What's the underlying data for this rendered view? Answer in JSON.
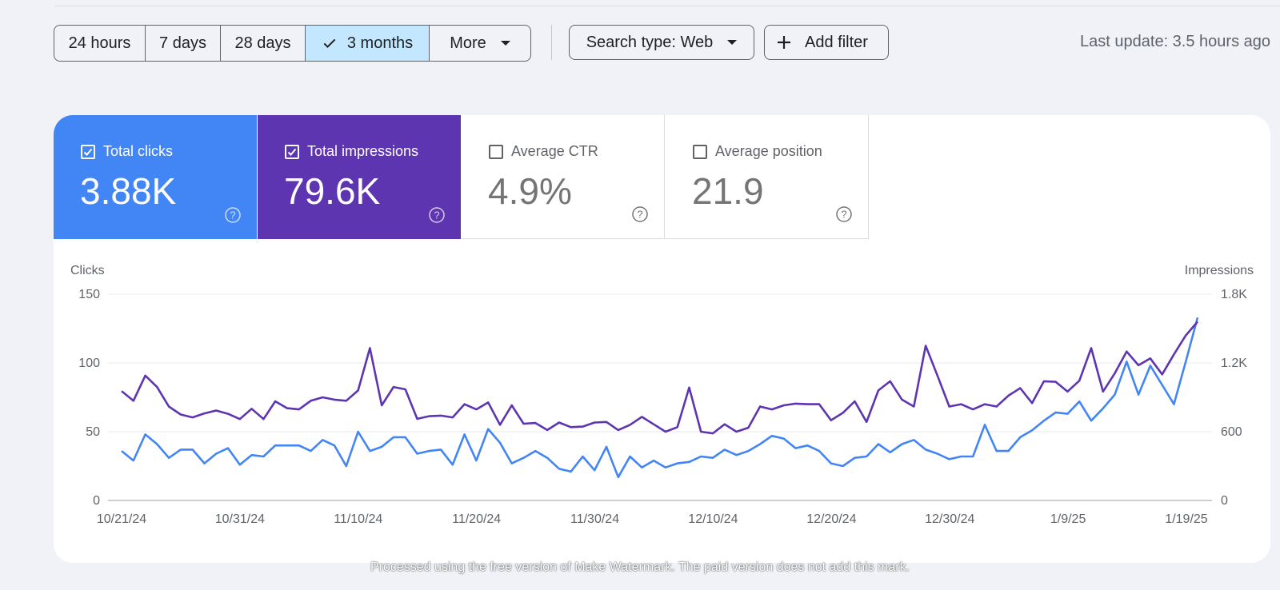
{
  "toolbar": {
    "ranges": [
      {
        "label": "24 hours",
        "selected": false
      },
      {
        "label": "7 days",
        "selected": false
      },
      {
        "label": "28 days",
        "selected": false
      },
      {
        "label": "3 months",
        "selected": true
      },
      {
        "label": "More",
        "selected": false
      }
    ],
    "search_type": "Search type: Web",
    "add_filter": "Add filter",
    "last_update": "Last update: 3.5 hours ago"
  },
  "metrics": [
    {
      "label": "Total clicks",
      "value": "3.88K",
      "checked": true,
      "color": "#4285f4"
    },
    {
      "label": "Total impressions",
      "value": "79.6K",
      "checked": true,
      "color": "#5e35b1"
    },
    {
      "label": "Average CTR",
      "value": "4.9%",
      "checked": false,
      "color": "#ffffff"
    },
    {
      "label": "Average position",
      "value": "21.9",
      "checked": false,
      "color": "#ffffff"
    }
  ],
  "chart_data": {
    "type": "line",
    "x_ticks": [
      "10/21/24",
      "10/31/24",
      "11/10/24",
      "11/20/24",
      "11/30/24",
      "12/10/24",
      "12/20/24",
      "12/30/24",
      "1/9/25",
      "1/19/25"
    ],
    "y_left": {
      "label": "Clicks",
      "ticks": [
        "0",
        "50",
        "100",
        "150"
      ],
      "range": [
        0,
        150
      ]
    },
    "y_right": {
      "label": "Impressions",
      "ticks": [
        "0",
        "600",
        "1.2K",
        "1.8K"
      ],
      "range": [
        0,
        1800
      ]
    },
    "series": [
      {
        "name": "Clicks",
        "axis": "left",
        "color": "#4285f4",
        "values": [
          36,
          29,
          48,
          41,
          31,
          37,
          37,
          27,
          34,
          38,
          26,
          33,
          32,
          40,
          40,
          40,
          36,
          44,
          40,
          25,
          50,
          36,
          39,
          46,
          46,
          34,
          36,
          37,
          26,
          48,
          29,
          52,
          42,
          27,
          31,
          36,
          31,
          23,
          21,
          32,
          22,
          39,
          17,
          32,
          24,
          29,
          24,
          27,
          28,
          32,
          31,
          37,
          33,
          36,
          41,
          47,
          45,
          38,
          40,
          36,
          27,
          25,
          31,
          32,
          41,
          35,
          41,
          44,
          37,
          34,
          30,
          32,
          32,
          55,
          36,
          36,
          46,
          51,
          58,
          64,
          63,
          72,
          58,
          67,
          77,
          101,
          77,
          98,
          84,
          70,
          101,
          133
        ]
      },
      {
        "name": "Impressions",
        "axis": "right",
        "color": "#5e35b1",
        "values": [
          954,
          870,
          1090,
          990,
          820,
          750,
          725,
          760,
          785,
          756,
          710,
          800,
          710,
          865,
          805,
          795,
          870,
          900,
          880,
          870,
          960,
          1330,
          830,
          990,
          970,
          712,
          735,
          740,
          725,
          840,
          795,
          855,
          660,
          830,
          670,
          676,
          615,
          680,
          640,
          645,
          680,
          685,
          615,
          660,
          730,
          665,
          600,
          640,
          985,
          600,
          585,
          665,
          600,
          635,
          820,
          795,
          830,
          845,
          840,
          840,
          700,
          765,
          865,
          685,
          960,
          1040,
          880,
          820,
          1350,
          1090,
          820,
          840,
          795,
          840,
          820,
          915,
          980,
          850,
          1040,
          1035,
          950,
          1045,
          1330,
          950,
          1110,
          1300,
          1180,
          1240,
          1100,
          1275,
          1440,
          1560
        ]
      }
    ]
  },
  "watermark": "Processed using the free version of Make Watermark. The paid version does not add this mark."
}
